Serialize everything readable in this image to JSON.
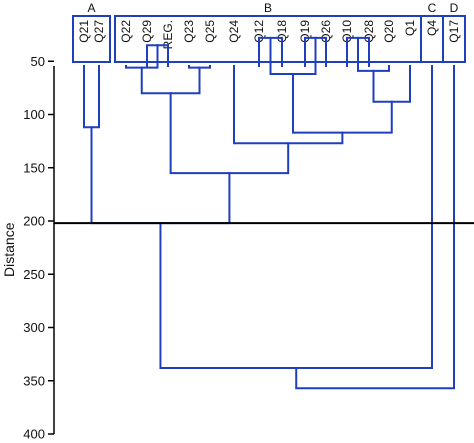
{
  "chart_data": {
    "type": "dendrogram",
    "title": "",
    "xlabel": "",
    "ylabel": "Distance",
    "ylim": [
      0,
      400
    ],
    "yticks": [
      50,
      100,
      150,
      200,
      250,
      300,
      350,
      400
    ],
    "cut_height": 202,
    "colors": {
      "tree": "#1f3fbf",
      "boxes": "#1f3fbf",
      "cut_line": "#000000",
      "axis": "#000000"
    },
    "leaves": [
      "Q21",
      "Q27",
      "Q22",
      "Q29",
      "REG.",
      "Q23",
      "Q25",
      "Q24",
      "Q12",
      "Q18",
      "Q19",
      "Q26",
      "Q10",
      "Q28",
      "Q20",
      "Q1",
      "Q4",
      "Q17"
    ],
    "groups": [
      {
        "label": "A",
        "leaves": [
          "Q21",
          "Q27"
        ]
      },
      {
        "label": "B",
        "leaves": [
          "Q22",
          "Q29",
          "REG.",
          "Q23",
          "Q25",
          "Q24",
          "Q12",
          "Q18",
          "Q19",
          "Q26",
          "Q10",
          "Q28",
          "Q20",
          "Q1"
        ]
      },
      {
        "label": "C",
        "leaves": [
          "Q4"
        ]
      },
      {
        "label": "D",
        "leaves": [
          "Q17"
        ]
      }
    ],
    "merges": [
      {
        "a": "Q29",
        "b": "REG.",
        "height": 35
      },
      {
        "a": "Q22",
        "b": "Q29+REG.",
        "height": 56
      },
      {
        "a": "Q23",
        "b": "Q25",
        "height": 56
      },
      {
        "a": "Q22+Q29+REG.",
        "b": "Q23+Q25",
        "height": 80
      },
      {
        "a": "Q12",
        "b": "Q18",
        "height": 28
      },
      {
        "a": "Q19",
        "b": "Q26",
        "height": 28
      },
      {
        "a": "Q12+Q18",
        "b": "Q19+Q26",
        "height": 62
      },
      {
        "a": "Q10",
        "b": "Q28",
        "height": 28
      },
      {
        "a": "Q10+Q28",
        "b": "Q20",
        "height": 59
      },
      {
        "a": "Q10+Q28+Q20",
        "b": "Q1",
        "height": 88
      },
      {
        "a": "Q12+Q18+Q19+Q26",
        "b": "Q10+Q28+Q20+Q1",
        "height": 117
      },
      {
        "a": "Q24",
        "b": "Q12..Q1",
        "height": 127
      },
      {
        "a": "Q22..Q25",
        "b": "Q24..Q1",
        "height": 155
      },
      {
        "a": "Q21",
        "b": "Q27",
        "height": 112
      },
      {
        "a": "Q21+Q27",
        "b": "Q22..Q1",
        "height": 202
      },
      {
        "a": "A+B",
        "b": "Q4",
        "height": 338
      },
      {
        "a": "A+B+Q4",
        "b": "Q17",
        "height": 357
      }
    ]
  }
}
